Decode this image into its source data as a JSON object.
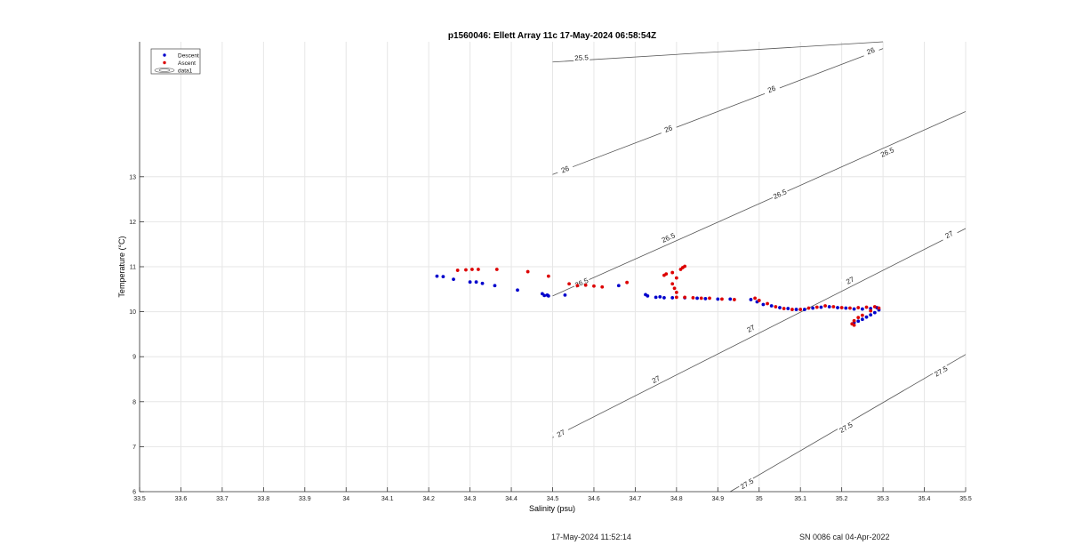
{
  "chart_data": {
    "type": "scatter",
    "title": "p1560046: Ellett Array 11c 17-May-2024 06:58:54Z",
    "xlabel": "Salinity (psu)",
    "ylabel": "Temperature (°C)",
    "xlim": [
      33.5,
      35.5
    ],
    "ylim": [
      6,
      16
    ],
    "xticks": [
      "33.5",
      "33.6",
      "33.7",
      "33.8",
      "33.9",
      "34",
      "34.1",
      "34.2",
      "34.3",
      "34.4",
      "34.5",
      "34.6",
      "34.7",
      "34.8",
      "34.9",
      "35",
      "35.1",
      "35.2",
      "35.3",
      "35.4",
      "35.5"
    ],
    "yticks": [
      "6",
      "7",
      "8",
      "9",
      "10",
      "11",
      "12",
      "13"
    ],
    "grid": true,
    "legend_position": "top-left",
    "legend": [
      "Descent",
      "Ascent",
      "data1"
    ],
    "series": [
      {
        "name": "Descent",
        "color": "#0000cc",
        "marker": "dot",
        "points": [
          [
            34.22,
            10.79
          ],
          [
            34.235,
            10.78
          ],
          [
            34.26,
            10.72
          ],
          [
            34.3,
            10.66
          ],
          [
            34.315,
            10.66
          ],
          [
            34.33,
            10.63
          ],
          [
            34.36,
            10.58
          ],
          [
            34.415,
            10.48
          ],
          [
            34.475,
            10.4
          ],
          [
            34.48,
            10.36
          ],
          [
            34.487,
            10.37
          ],
          [
            34.49,
            10.35
          ],
          [
            34.53,
            10.37
          ],
          [
            34.66,
            10.58
          ],
          [
            34.725,
            10.38
          ],
          [
            34.73,
            10.35
          ],
          [
            34.75,
            10.32
          ],
          [
            34.76,
            10.33
          ],
          [
            34.77,
            10.31
          ],
          [
            34.79,
            10.31
          ],
          [
            34.82,
            10.31
          ],
          [
            34.85,
            10.3
          ],
          [
            34.87,
            10.29
          ],
          [
            34.9,
            10.28
          ],
          [
            34.93,
            10.28
          ],
          [
            34.98,
            10.27
          ],
          [
            34.995,
            10.22
          ],
          [
            35.01,
            10.16
          ],
          [
            35.03,
            10.13
          ],
          [
            35.05,
            10.09
          ],
          [
            35.07,
            10.07
          ],
          [
            35.09,
            10.05
          ],
          [
            35.11,
            10.05
          ],
          [
            35.13,
            10.08
          ],
          [
            35.15,
            10.1
          ],
          [
            35.17,
            10.11
          ],
          [
            35.19,
            10.09
          ],
          [
            35.21,
            10.08
          ],
          [
            35.23,
            10.06
          ],
          [
            35.25,
            10.06
          ],
          [
            35.27,
            10.07
          ],
          [
            35.285,
            10.09
          ],
          [
            35.29,
            10.04
          ],
          [
            35.28,
            9.98
          ],
          [
            35.27,
            9.93
          ],
          [
            35.26,
            9.88
          ],
          [
            35.25,
            9.83
          ],
          [
            35.24,
            9.79
          ],
          [
            35.23,
            9.76
          ]
        ]
      },
      {
        "name": "Ascent",
        "color": "#dd0000",
        "marker": "dot",
        "points": [
          [
            34.27,
            10.92
          ],
          [
            34.29,
            10.93
          ],
          [
            34.305,
            10.94
          ],
          [
            34.32,
            10.94
          ],
          [
            34.365,
            10.94
          ],
          [
            34.44,
            10.89
          ],
          [
            34.49,
            10.79
          ],
          [
            34.54,
            10.62
          ],
          [
            34.56,
            10.58
          ],
          [
            34.58,
            10.59
          ],
          [
            34.6,
            10.57
          ],
          [
            34.62,
            10.55
          ],
          [
            34.68,
            10.65
          ],
          [
            34.77,
            10.81
          ],
          [
            34.775,
            10.84
          ],
          [
            34.79,
            10.87
          ],
          [
            34.8,
            10.75
          ],
          [
            34.79,
            10.62
          ],
          [
            34.795,
            10.52
          ],
          [
            34.8,
            10.43
          ],
          [
            34.81,
            10.94
          ],
          [
            34.815,
            10.98
          ],
          [
            34.82,
            11.01
          ],
          [
            34.8,
            10.32
          ],
          [
            34.82,
            10.32
          ],
          [
            34.84,
            10.31
          ],
          [
            34.86,
            10.3
          ],
          [
            34.88,
            10.3
          ],
          [
            34.91,
            10.28
          ],
          [
            34.94,
            10.27
          ],
          [
            34.99,
            10.3
          ],
          [
            35.0,
            10.25
          ],
          [
            35.02,
            10.18
          ],
          [
            35.04,
            10.11
          ],
          [
            35.06,
            10.07
          ],
          [
            35.08,
            10.05
          ],
          [
            35.1,
            10.05
          ],
          [
            35.12,
            10.08
          ],
          [
            35.14,
            10.1
          ],
          [
            35.16,
            10.13
          ],
          [
            35.18,
            10.11
          ],
          [
            35.2,
            10.09
          ],
          [
            35.22,
            10.08
          ],
          [
            35.24,
            10.09
          ],
          [
            35.26,
            10.1
          ],
          [
            35.28,
            10.11
          ],
          [
            35.29,
            10.08
          ],
          [
            35.27,
            10.02
          ],
          [
            35.25,
            9.92
          ],
          [
            35.24,
            9.87
          ],
          [
            35.23,
            9.8
          ],
          [
            35.225,
            9.73
          ],
          [
            35.23,
            9.7
          ]
        ]
      },
      {
        "name": "data1",
        "type": "density-contours",
        "color": "#000000",
        "contours": [
          {
            "label": "25.5",
            "points": [
              [
                34.5,
                15.55
              ],
              [
                35.3,
                16.0
              ]
            ],
            "label_positions": [
              [
                34.57,
                15.65
              ]
            ]
          },
          {
            "label": "26",
            "points": [
              [
                34.5,
                13.05
              ],
              [
                35.3,
                15.85
              ]
            ],
            "label_positions": [
              [
                34.53,
                13.17
              ],
              [
                34.78,
                14.07
              ],
              [
                35.03,
                14.95
              ],
              [
                35.27,
                15.8
              ]
            ]
          },
          {
            "label": "26.5",
            "points": [
              [
                34.5,
                10.35
              ],
              [
                35.5,
                14.45
              ]
            ],
            "label_positions": [
              [
                34.57,
                10.65
              ],
              [
                34.78,
                11.65
              ],
              [
                35.05,
                12.62
              ],
              [
                35.31,
                13.55
              ]
            ]
          },
          {
            "label": "27",
            "points": [
              [
                34.5,
                7.2
              ],
              [
                35.5,
                11.85
              ]
            ],
            "label_positions": [
              [
                34.52,
                7.3
              ],
              [
                34.75,
                8.5
              ],
              [
                34.98,
                9.63
              ],
              [
                35.22,
                10.7
              ],
              [
                35.46,
                11.72
              ]
            ]
          },
          {
            "label": "27.5",
            "points": [
              [
                34.93,
                6.0
              ],
              [
                35.5,
                9.05
              ]
            ],
            "label_positions": [
              [
                34.97,
                6.18
              ],
              [
                35.21,
                7.43
              ],
              [
                35.44,
                8.68
              ]
            ]
          }
        ]
      }
    ]
  },
  "footer": {
    "timestamp": "17-May-2024 11:52:14",
    "sensor": "SN 0086 cal 04-Apr-2022"
  }
}
